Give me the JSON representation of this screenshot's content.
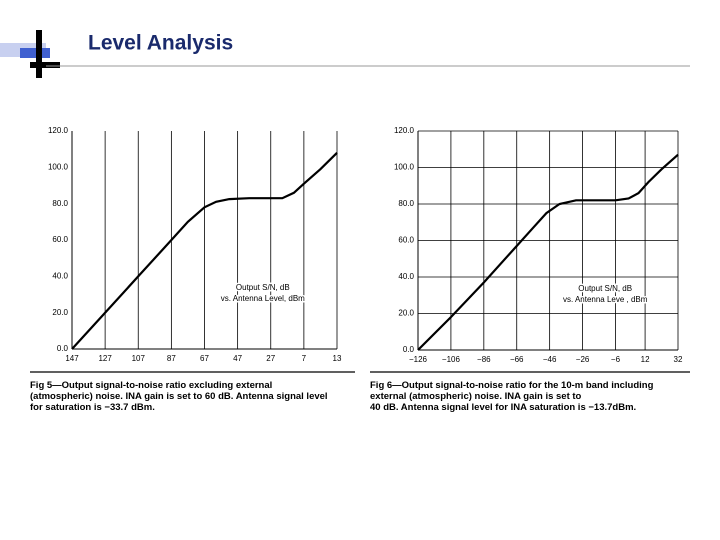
{
  "title": "Level Analysis",
  "chart_data": [
    {
      "type": "line",
      "annotation": [
        "Output S/N, dB",
        "vs. Antenna Level, dBm"
      ],
      "caption": [
        "Fig 5—Output signal-to-noise ratio excluding external",
        "(atmospheric) noise. INA gain is set to 60 dB. Antenna signal level",
        "for saturation is −33.7 dBm."
      ],
      "x": [
        -147,
        -127,
        -107,
        -87,
        -77,
        -67,
        -60,
        -52,
        -40,
        -27,
        -20,
        -13,
        -7,
        3,
        13
      ],
      "series": [
        {
          "name": "Output S/N",
          "color": "#000000",
          "values": [
            0,
            20,
            40,
            60,
            70,
            78,
            81,
            82.5,
            83,
            83,
            83,
            86,
            91,
            99,
            108
          ]
        }
      ],
      "xlim": [
        -147,
        13
      ],
      "xticks": [
        {
          "value": -147,
          "label": "147"
        },
        {
          "value": -127,
          "label": "127"
        },
        {
          "value": -107,
          "label": "107"
        },
        {
          "value": -87,
          "label": "87"
        },
        {
          "value": -67,
          "label": "67"
        },
        {
          "value": -47,
          "label": "47"
        },
        {
          "value": -27,
          "label": "27"
        },
        {
          "value": -7,
          "label": "7"
        },
        13
      ],
      "ylim": [
        0,
        120
      ],
      "yticks": [
        {
          "value": 0,
          "label": "0.0"
        },
        {
          "value": 20,
          "label": "20.0"
        },
        {
          "value": 40,
          "label": "40.0"
        },
        {
          "value": 60,
          "label": "60.0"
        },
        {
          "value": 80,
          "label": "80.0"
        },
        {
          "value": 100,
          "label": "100.0"
        },
        {
          "value": 120,
          "label": "120.0"
        }
      ],
      "grid": "x"
    },
    {
      "type": "line",
      "annotation": [
        "Output S/N, dB",
        "vs. Antenna Leve , dBm"
      ],
      "caption": [
        "Fig 6—Output signal-to-noise ratio for the 10-m band including",
        "external (atmospheric) noise. INA gain is set to",
        "40 dB. Antenna signal level for INA saturation is −13.7dBm."
      ],
      "x": [
        -126,
        -106,
        -86,
        -66,
        -56,
        -48,
        -40,
        -30,
        -20,
        -6,
        2,
        8,
        14,
        22,
        32
      ],
      "series": [
        {
          "name": "Output S/N",
          "color": "#000000",
          "values": [
            0,
            18,
            37,
            57,
            67,
            75,
            80,
            82,
            82,
            82,
            83,
            86,
            92,
            99,
            107
          ]
        }
      ],
      "xlim": [
        -126,
        32
      ],
      "xticks": [
        {
          "value": -126,
          "label": "−126"
        },
        {
          "value": -106,
          "label": "−106"
        },
        {
          "value": -86,
          "label": "−86"
        },
        {
          "value": -66,
          "label": "−66"
        },
        {
          "value": -46,
          "label": "−46"
        },
        {
          "value": -26,
          "label": "−26"
        },
        {
          "value": -6,
          "label": "−6"
        },
        12,
        32
      ],
      "ylim": [
        0,
        120
      ],
      "yticks": [
        {
          "value": 0,
          "label": "0.0"
        },
        {
          "value": 20,
          "label": "20.0"
        },
        {
          "value": 40,
          "label": "40.0"
        },
        {
          "value": 60,
          "label": "60.0"
        },
        {
          "value": 80,
          "label": "80.0"
        },
        {
          "value": 100,
          "label": "100.0"
        },
        {
          "value": 120,
          "label": "120.0"
        }
      ],
      "grid": "both"
    }
  ]
}
